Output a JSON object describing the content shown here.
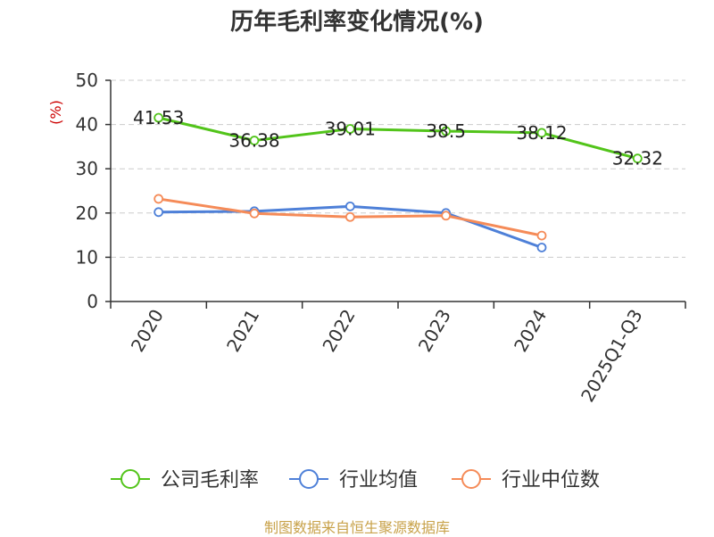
{
  "chart_data": {
    "type": "line",
    "title": "历年毛利率变化情况(%)",
    "ylabel": "(%)",
    "xlabel": "",
    "categories": [
      "2020",
      "2021",
      "2022",
      "2023",
      "2024",
      "2025Q1-Q3"
    ],
    "ylim": [
      0,
      50
    ],
    "yticks": [
      "0",
      "10",
      "20",
      "30",
      "40",
      "50"
    ],
    "grid": true,
    "legend_position": "bottom",
    "series": [
      {
        "name": "公司毛利率",
        "color": "#52c41a",
        "values": [
          41.53,
          36.38,
          39.01,
          38.5,
          38.12,
          32.32
        ],
        "labels": [
          "41.53",
          "36.38",
          "39.01",
          "38.5",
          "38.12",
          "32.32"
        ]
      },
      {
        "name": "行业均值",
        "color": "#4e80d8",
        "values": [
          20.2,
          20.4,
          21.5,
          20.0,
          12.2,
          null
        ]
      },
      {
        "name": "行业中位数",
        "color": "#f58b58",
        "values": [
          23.2,
          19.9,
          19.1,
          19.4,
          14.9,
          null
        ]
      }
    ]
  },
  "footer": {
    "text": "制图数据来自恒生聚源数据库",
    "color": "#c8a24a"
  },
  "colors": {
    "axis": "#333333",
    "grid": "#cccccc",
    "ylabel": "#cc0000"
  }
}
